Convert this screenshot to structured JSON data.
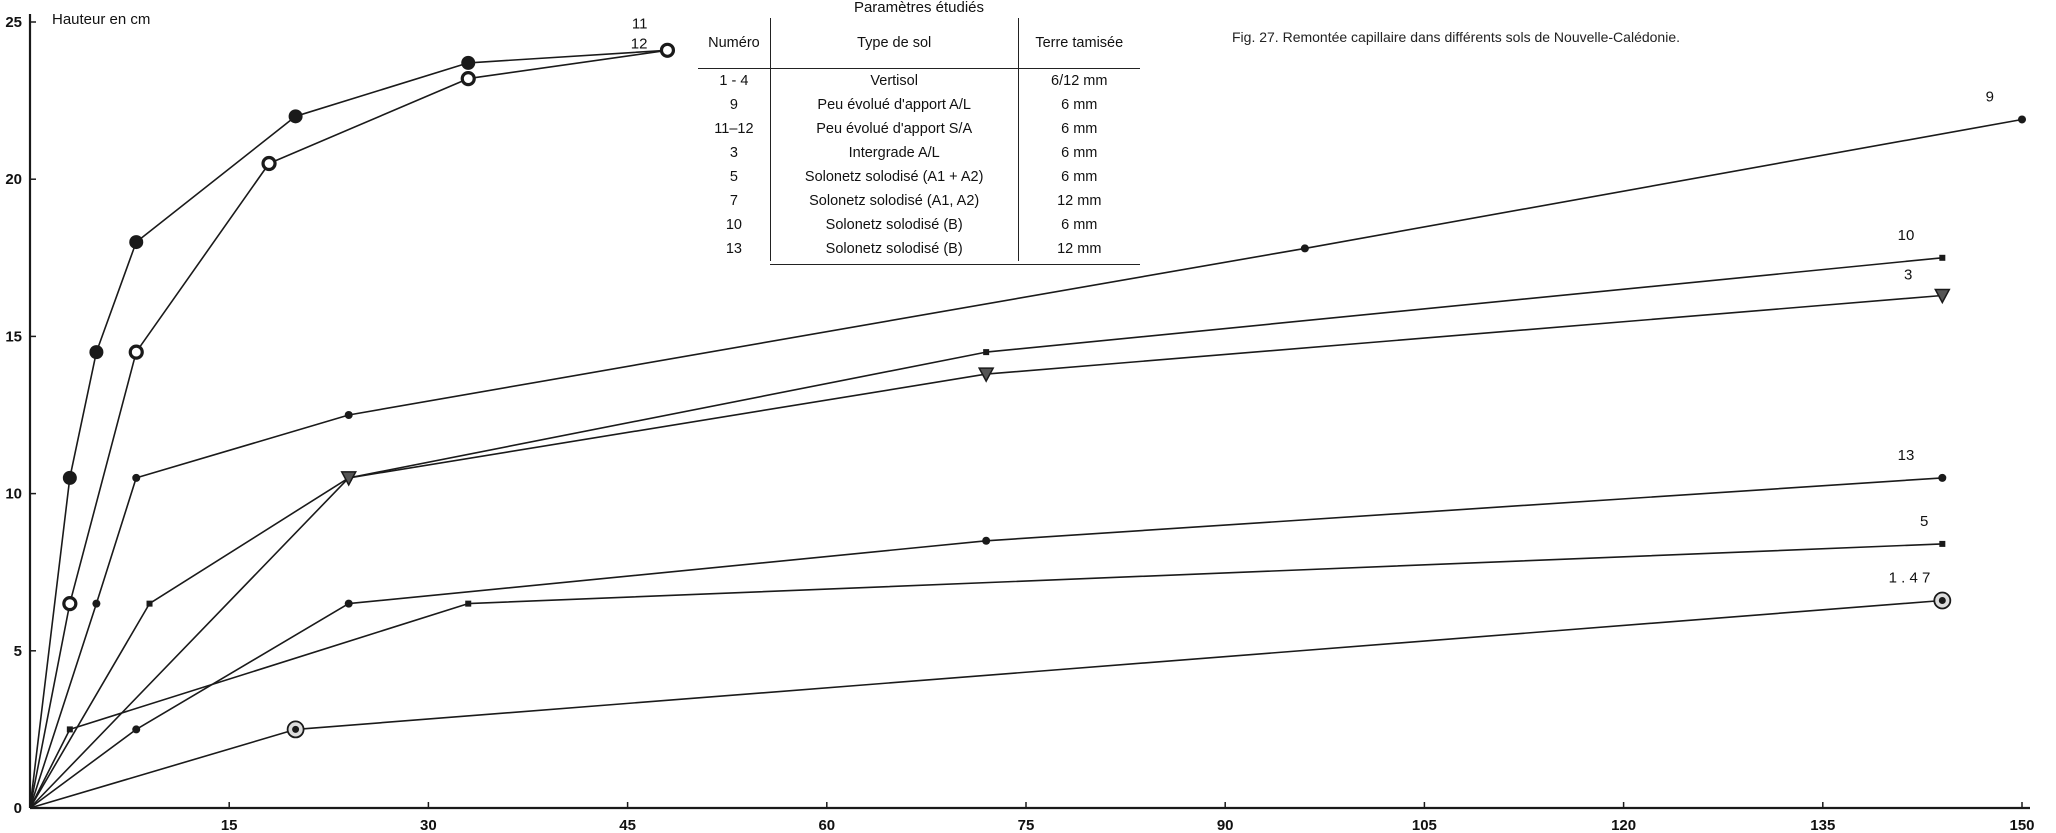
{
  "figure_title": "Fig. 27. Remontée capillaire dans différents sols de Nouvelle-Calédonie.",
  "table": {
    "caption": "Paramètres étudiés",
    "headers": [
      "Numéro",
      "Type de sol",
      "Terre tamisée"
    ],
    "rows": [
      {
        "num": "1 - 4",
        "type": "Vertisol",
        "terre": "6/12 mm"
      },
      {
        "num": "9",
        "type": "Peu évolué d'apport A/L",
        "terre": "6 mm"
      },
      {
        "num": "11–12",
        "type": "Peu évolué d'apport S/A",
        "terre": "6 mm"
      },
      {
        "num": "3",
        "type": "Intergrade A/L",
        "terre": "6 mm"
      },
      {
        "num": "5",
        "type": "Solonetz solodisé (A1 + A2)",
        "terre": "6 mm"
      },
      {
        "num": "7",
        "type": "Solonetz solodisé (A1, A2)",
        "terre": "12 mm"
      },
      {
        "num": "10",
        "type": "Solonetz solodisé (B)",
        "terre": "6 mm"
      },
      {
        "num": "13",
        "type": "Solonetz solodisé (B)",
        "terre": "12 mm"
      }
    ]
  },
  "chart_data": {
    "type": "line",
    "title": "",
    "xlabel": "",
    "ylabel": "Hauteur en cm",
    "xlim": [
      0,
      150
    ],
    "ylim": [
      0,
      25
    ],
    "xticks": [
      "0",
      "15",
      "30",
      "45",
      "60",
      "75",
      "90",
      "105",
      "120",
      "135",
      "150"
    ],
    "yticks": [
      "0",
      "5",
      "10",
      "15",
      "20",
      "25"
    ],
    "grid": false,
    "legend": "none",
    "series": [
      {
        "name": "11",
        "x": [
          0,
          3,
          5,
          8,
          20,
          33,
          48
        ],
        "y": [
          0,
          10.5,
          14.5,
          18,
          22,
          23.7,
          24.1
        ],
        "marker": "filled-large"
      },
      {
        "name": "12",
        "x": [
          0,
          3,
          8,
          18,
          33,
          48
        ],
        "y": [
          0,
          6.5,
          14.5,
          20.5,
          23.2,
          24.1
        ],
        "marker": "ring"
      },
      {
        "name": "9",
        "x": [
          0,
          5,
          8,
          24,
          96,
          150
        ],
        "y": [
          0,
          6.5,
          10.5,
          12.5,
          17.8,
          21.9
        ],
        "marker": "small-dot"
      },
      {
        "name": "10",
        "x": [
          0,
          9,
          24,
          72,
          144
        ],
        "y": [
          0,
          6.5,
          10.5,
          14.5,
          17.5
        ],
        "marker": "tick"
      },
      {
        "name": "3",
        "x": [
          0,
          24,
          72,
          144
        ],
        "y": [
          0,
          10.5,
          13.8,
          16.3
        ],
        "marker": "triangle"
      },
      {
        "name": "13",
        "x": [
          0,
          8,
          24,
          72,
          144
        ],
        "y": [
          0,
          2.5,
          6.5,
          8.5,
          10.5
        ],
        "marker": "small-dot"
      },
      {
        "name": "5",
        "x": [
          0,
          3,
          33,
          144
        ],
        "y": [
          0,
          2.5,
          6.5,
          8.4
        ],
        "marker": "tick"
      },
      {
        "name": "1 . 4 7",
        "x": [
          0,
          20,
          144
        ],
        "y": [
          0,
          2.5,
          6.6
        ],
        "marker": "target"
      }
    ]
  },
  "colors": {
    "line": "#1a1a1a",
    "background": "#ffffff"
  }
}
